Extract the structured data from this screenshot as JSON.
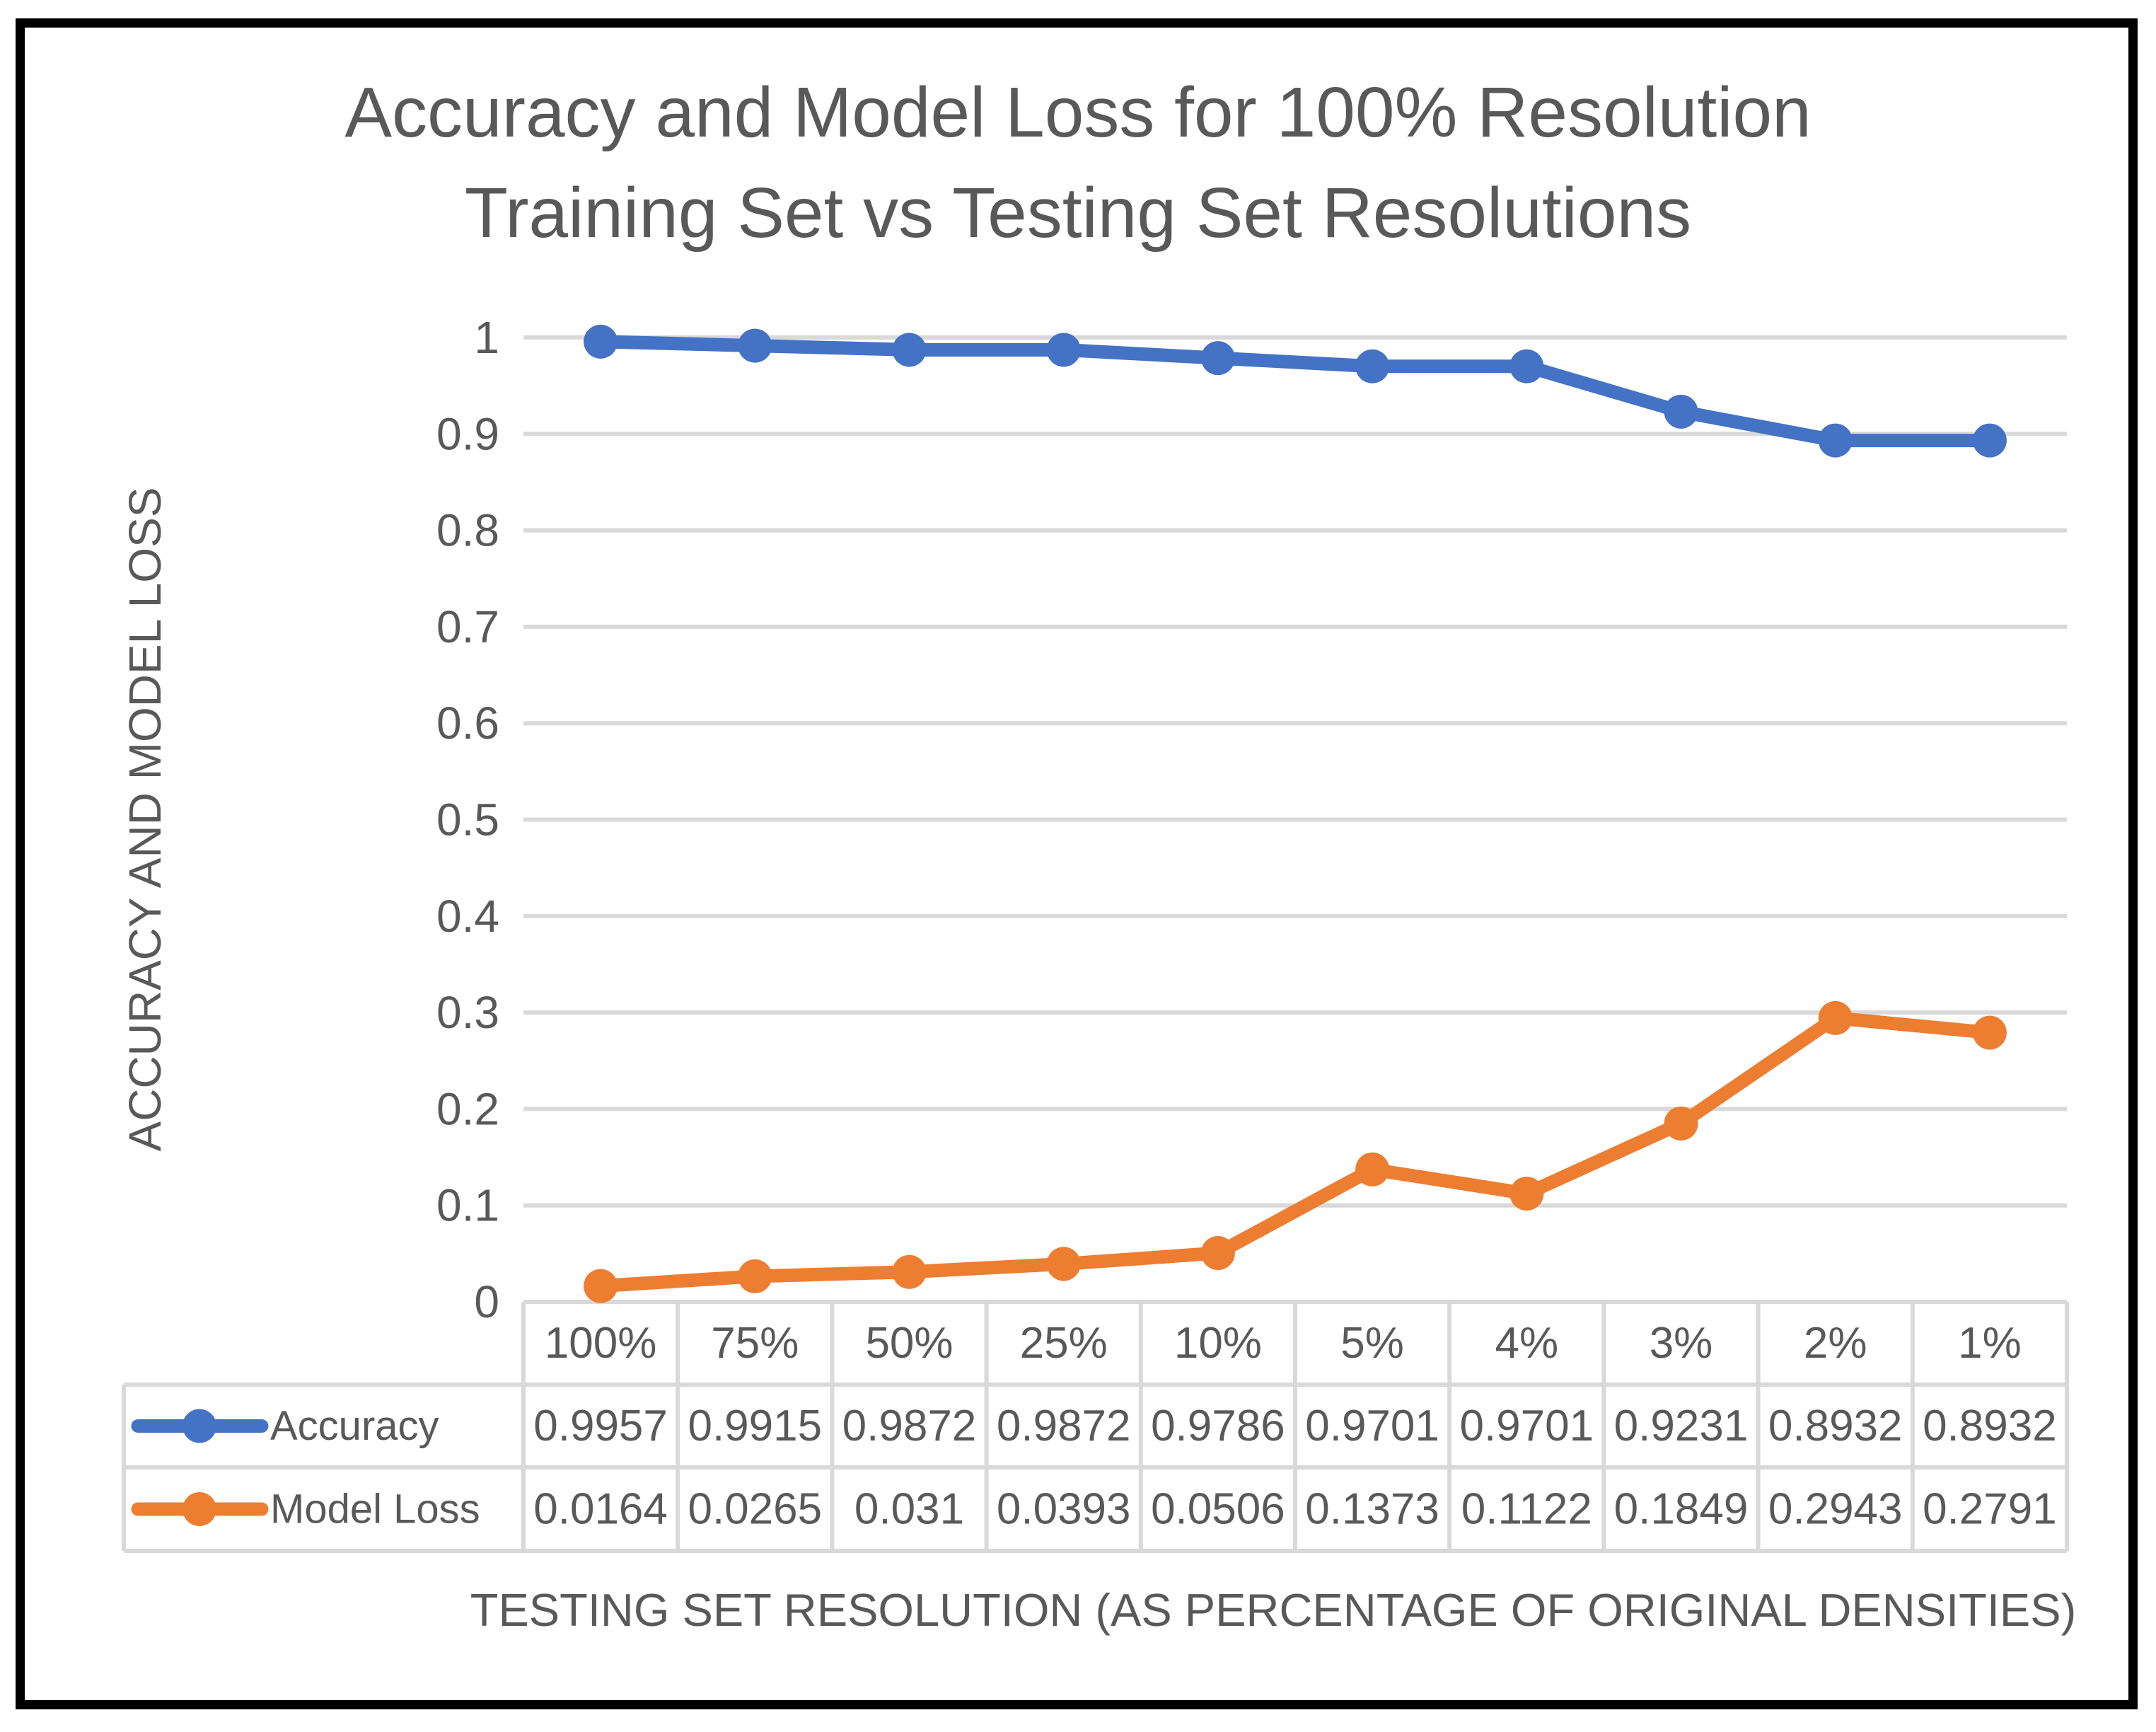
{
  "page": {
    "background_color": "#FFFFFF",
    "frame_border_color": "#000000"
  },
  "title": {
    "lines": [
      "Accuracy and Model Loss for 100% Resolution",
      "Training Set vs Testing Set Resolutions"
    ],
    "color": "#595959"
  },
  "chart_data": {
    "type": "line",
    "title": "Accuracy and Model Loss for 100% Resolution Training Set vs Testing Set Resolutions",
    "xlabel": "TESTING SET RESOLUTION (AS PERCENTAGE OF ORIGINAL DENSITIES)",
    "ylabel": "ACCURACY AND MODEL LOSS",
    "categories": [
      "100%",
      "75%",
      "50%",
      "25%",
      "10%",
      "5%",
      "4%",
      "3%",
      "2%",
      "1%"
    ],
    "series": [
      {
        "name": "Accuracy",
        "color": "#4472C4",
        "values": [
          0.9957,
          0.9915,
          0.9872,
          0.9872,
          0.9786,
          0.9701,
          0.9701,
          0.9231,
          0.8932,
          0.8932
        ],
        "labels": [
          "0.9957",
          "0.9915",
          "0.9872",
          "0.9872",
          "0.9786",
          "0.9701",
          "0.9701",
          "0.9231",
          "0.8932",
          "0.8932"
        ]
      },
      {
        "name": "Model Loss",
        "color": "#ED7D31",
        "values": [
          0.0164,
          0.0265,
          0.031,
          0.0393,
          0.0506,
          0.1373,
          0.1122,
          0.1849,
          0.2943,
          0.2791
        ],
        "labels": [
          "0.0164",
          "0.0265",
          "0.031",
          "0.0393",
          "0.0506",
          "0.1373",
          "0.1122",
          "0.1849",
          "0.2943",
          "0.2791"
        ]
      }
    ],
    "ylim": [
      0,
      1
    ],
    "ytick_step": 0.1,
    "yticks": [
      "1",
      "0.9",
      "0.8",
      "0.7",
      "0.6",
      "0.5",
      "0.4",
      "0.3",
      "0.2",
      "0.1",
      "0"
    ],
    "grid": true,
    "legend_position": "table-left",
    "gridline_color": "#D9D9D9",
    "text_color": "#595959",
    "marker_style": "circle",
    "data_table_shown": true
  }
}
